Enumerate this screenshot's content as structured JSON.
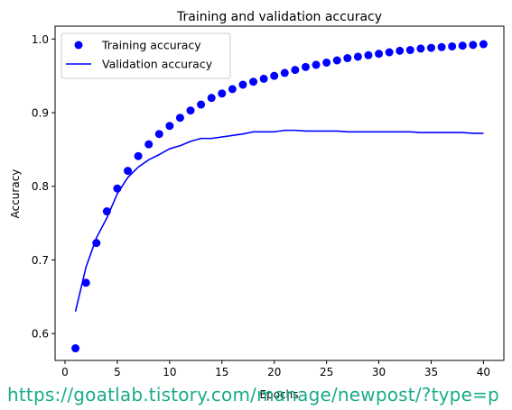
{
  "chart_data": {
    "type": "line",
    "title": "Training and validation accuracy",
    "xlabel": "Epochs",
    "ylabel": "Accuracy",
    "xlim": [
      -0.95,
      41.95
    ],
    "ylim": [
      0.5635,
      1.0175
    ],
    "xticks": [
      0,
      5,
      10,
      15,
      20,
      25,
      30,
      35,
      40
    ],
    "yticks": [
      0.6,
      0.7,
      0.8,
      0.9,
      1.0
    ],
    "ytick_labels": [
      "0.6",
      "0.7",
      "0.8",
      "0.9",
      "1.0"
    ],
    "grid": false,
    "legend": "top-left",
    "x": [
      1,
      2,
      3,
      4,
      5,
      6,
      7,
      8,
      9,
      10,
      11,
      12,
      13,
      14,
      15,
      16,
      17,
      18,
      19,
      20,
      21,
      22,
      23,
      24,
      25,
      26,
      27,
      28,
      29,
      30,
      31,
      32,
      33,
      34,
      35,
      36,
      37,
      38,
      39,
      40
    ],
    "series": [
      {
        "name": "Training accuracy",
        "style": "markers",
        "color": "#0000ff",
        "values": [
          0.58,
          0.669,
          0.723,
          0.766,
          0.797,
          0.821,
          0.841,
          0.857,
          0.871,
          0.882,
          0.893,
          0.903,
          0.911,
          0.92,
          0.926,
          0.932,
          0.938,
          0.942,
          0.946,
          0.95,
          0.954,
          0.958,
          0.962,
          0.965,
          0.968,
          0.971,
          0.974,
          0.976,
          0.978,
          0.98,
          0.982,
          0.984,
          0.985,
          0.987,
          0.988,
          0.989,
          0.99,
          0.991,
          0.992,
          0.993
        ]
      },
      {
        "name": "Validation accuracy",
        "style": "line",
        "color": "#0000ff",
        "values": [
          0.63,
          0.69,
          0.73,
          0.757,
          0.79,
          0.812,
          0.826,
          0.836,
          0.843,
          0.851,
          0.855,
          0.861,
          0.865,
          0.865,
          0.867,
          0.869,
          0.871,
          0.874,
          0.874,
          0.874,
          0.876,
          0.876,
          0.875,
          0.875,
          0.875,
          0.875,
          0.874,
          0.874,
          0.874,
          0.874,
          0.874,
          0.874,
          0.874,
          0.873,
          0.873,
          0.873,
          0.873,
          0.873,
          0.872,
          0.872
        ]
      }
    ]
  },
  "watermark": {
    "text": "https://goatlab.tistory.com/manage/newpost/?type=p",
    "color": "#1aab8b"
  }
}
